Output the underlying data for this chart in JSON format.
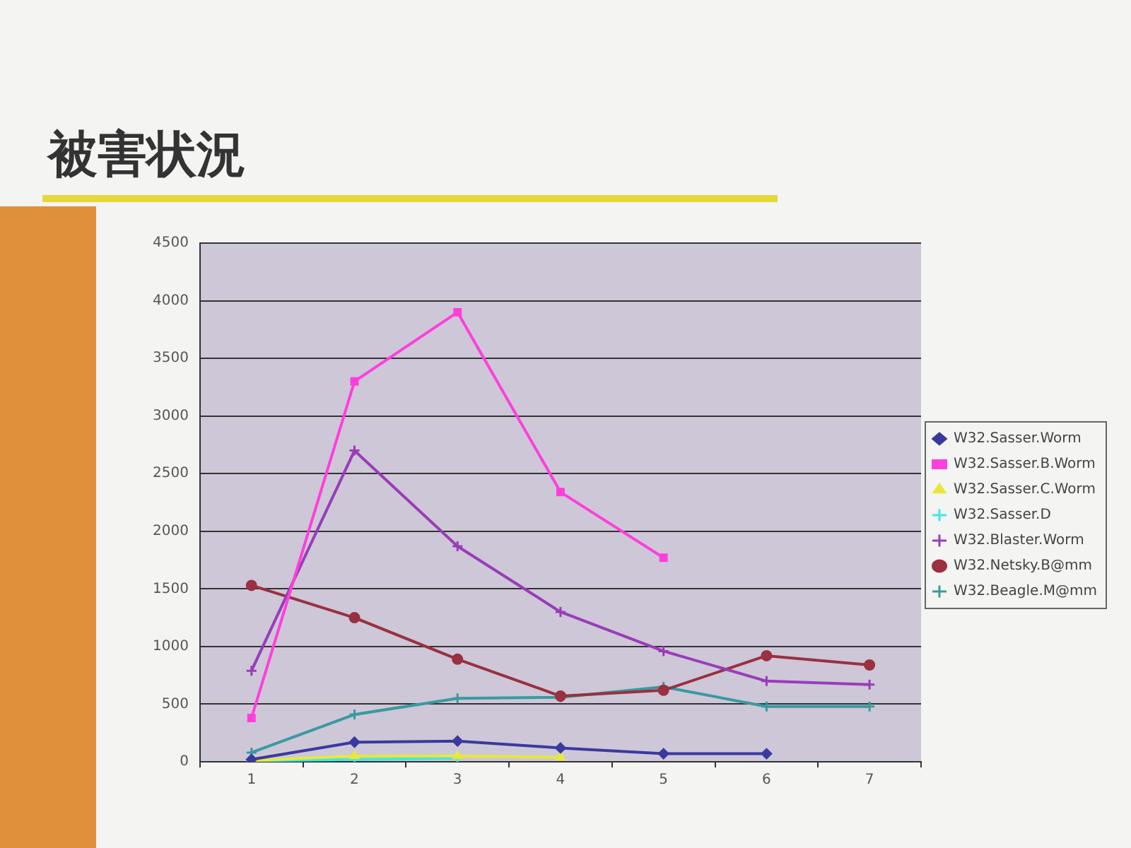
{
  "chart_data": {
    "type": "line",
    "title": "被害状況",
    "categories": [
      "1",
      "2",
      "3",
      "4",
      "5",
      "6",
      "7"
    ],
    "series": [
      {
        "name": "W32.Sasser.Worm",
        "color": "#3a3a9e",
        "marker": "diamond",
        "values": [
          20,
          170,
          180,
          120,
          70,
          70,
          null
        ]
      },
      {
        "name": "W32.Sasser.B.Worm",
        "color": "#ff3fdc",
        "marker": "square",
        "values": [
          380,
          3300,
          3900,
          2340,
          1770,
          null,
          null
        ]
      },
      {
        "name": "W32.Sasser.C.Worm",
        "color": "#e8e83a",
        "marker": "triangle",
        "values": [
          10,
          50,
          50,
          40,
          null,
          null,
          null
        ]
      },
      {
        "name": "W32.Sasser.D",
        "color": "#3fe8e8",
        "marker": "cross",
        "values": [
          10,
          20,
          30,
          null,
          null,
          null,
          null
        ]
      },
      {
        "name": "W32.Blaster.Worm",
        "color": "#9a3cb8",
        "marker": "cross",
        "values": [
          790,
          2700,
          1870,
          1300,
          960,
          700,
          670
        ]
      },
      {
        "name": "W32.Netsky.B@mm",
        "color": "#9a3040",
        "marker": "circle",
        "values": [
          1530,
          1250,
          890,
          570,
          620,
          920,
          840
        ]
      },
      {
        "name": "W32.Beagle.M@mm",
        "color": "#3a9a9e",
        "marker": "cross",
        "values": [
          80,
          410,
          550,
          560,
          650,
          480,
          480
        ]
      }
    ],
    "ylim": [
      0,
      4500
    ],
    "yticks": [
      0,
      500,
      1000,
      1500,
      2000,
      2500,
      3000,
      3500,
      4000,
      4500
    ],
    "grid": "y",
    "legend": "right"
  }
}
